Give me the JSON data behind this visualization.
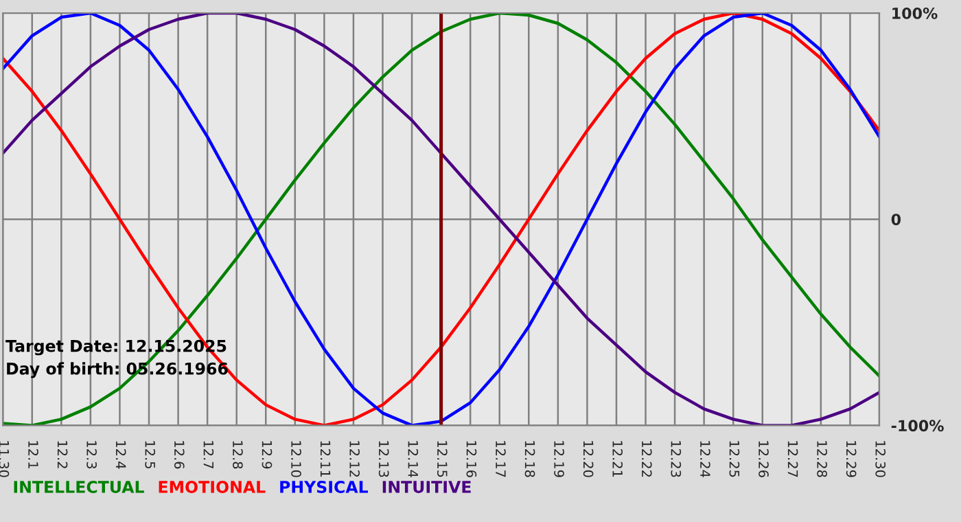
{
  "chart_data": {
    "type": "line",
    "categories": [
      "11.30",
      "12.1",
      "12.2",
      "12.3",
      "12.4",
      "12.5",
      "12.6",
      "12.7",
      "12.8",
      "12.9",
      "12.10",
      "12.11",
      "12.12",
      "12.13",
      "12.14",
      "12.15",
      "12.16",
      "12.17",
      "12.18",
      "12.19",
      "12.20",
      "12.21",
      "12.22",
      "12.23",
      "12.24",
      "12.25",
      "12.26",
      "12.27",
      "12.28",
      "12.29",
      "12.30"
    ],
    "series": [
      {
        "name": "INTELLECTUAL",
        "color": "#008000",
        "values": [
          -99,
          -100,
          -97,
          -91,
          -82,
          -69,
          -54,
          -37,
          -19,
          0,
          19,
          37,
          54,
          69,
          82,
          91,
          97,
          100,
          99,
          95,
          87,
          76,
          62,
          46,
          28,
          10,
          -10,
          -28,
          -46,
          -62,
          -76
        ]
      },
      {
        "name": "EMOTIONAL",
        "color": "#ff0000",
        "values": [
          78,
          62,
          43,
          22,
          0,
          -22,
          -43,
          -62,
          -78,
          -90,
          -97,
          -100,
          -97,
          -90,
          -78,
          -62,
          -43,
          -22,
          0,
          22,
          43,
          62,
          78,
          90,
          97,
          100,
          97,
          90,
          78,
          62,
          43
        ]
      },
      {
        "name": "PHYSICAL",
        "color": "#0000ff",
        "values": [
          73,
          89,
          98,
          100,
          94,
          82,
          63,
          40,
          14,
          -14,
          -40,
          -63,
          -82,
          -94,
          -100,
          -98,
          -89,
          -73,
          -52,
          -27,
          0,
          27,
          52,
          73,
          89,
          98,
          100,
          94,
          82,
          63,
          40
        ]
      },
      {
        "name": "INTUITIVE",
        "color": "#4b0082",
        "values": [
          32,
          48,
          61,
          74,
          84,
          92,
          97,
          100,
          100,
          97,
          92,
          84,
          74,
          61,
          48,
          32,
          16,
          0,
          -16,
          -32,
          -48,
          -61,
          -74,
          -84,
          -92,
          -97,
          -100,
          -100,
          -97,
          -92,
          -84
        ]
      }
    ],
    "ylim": [
      -100,
      100
    ],
    "yticks": [
      {
        "value": 100,
        "label": "100%"
      },
      0,
      {
        "value": -100,
        "label": "-100%"
      }
    ],
    "grid": true,
    "legend": "bottom",
    "ref_lines": [
      {
        "axis": "x",
        "value": "12.15",
        "color": "#800000"
      }
    ],
    "annotations": [
      "Target Date: 12.15.2025",
      "Day of birth: 05.26.1966"
    ]
  }
}
